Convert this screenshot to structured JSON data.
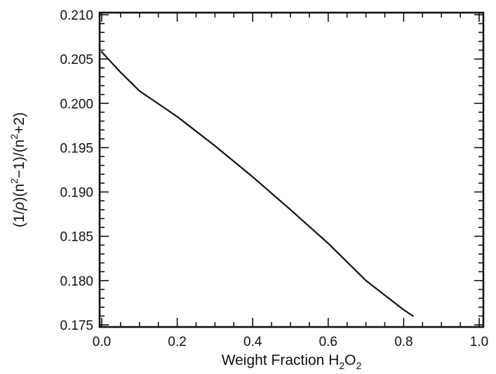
{
  "chart_data": {
    "type": "line",
    "title": "",
    "xlabel": {
      "text": "Weight Fraction H",
      "sub1": "2",
      "mid": "O",
      "sub2": "2"
    },
    "ylabel": {
      "part1": "(1/",
      "rho": "ρ",
      "part2": ")(n",
      "sup1": "2",
      "part3": "−1)/(n",
      "sup2": "2",
      "part4": "+2)"
    },
    "xlim": [
      0.0,
      1.0
    ],
    "ylim": [
      0.175,
      0.21
    ],
    "x_ticks": [
      0.0,
      0.2,
      0.4,
      0.6,
      0.8,
      1.0
    ],
    "x_tick_labels": [
      "0.0",
      "0.2",
      "0.4",
      "0.6",
      "0.8",
      "1.0"
    ],
    "y_ticks": [
      0.175,
      0.18,
      0.185,
      0.19,
      0.195,
      0.2,
      0.205,
      0.21
    ],
    "y_tick_labels": [
      "0.175",
      "0.180",
      "0.185",
      "0.190",
      "0.195",
      "0.200",
      "0.205",
      "0.210"
    ],
    "grid": false,
    "legend": "none",
    "line_color": "#111111",
    "series": [
      {
        "x": [
          0.0,
          0.05,
          0.1,
          0.2,
          0.3,
          0.4,
          0.5,
          0.6,
          0.7,
          0.8,
          0.825
        ],
        "y": [
          0.2058,
          0.2035,
          0.2014,
          0.1985,
          0.1952,
          0.1917,
          0.188,
          0.1842,
          0.18,
          0.1767,
          0.176
        ]
      }
    ]
  }
}
